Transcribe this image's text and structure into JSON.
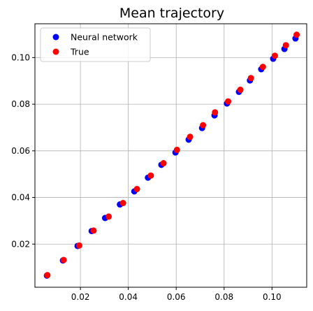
{
  "chart_data": {
    "type": "scatter",
    "title": "Mean trajectory",
    "xlabel": "",
    "ylabel": "",
    "xlim": [
      0.001,
      0.1145
    ],
    "ylim": [
      0.0015,
      0.1145
    ],
    "xticks": [
      0.02,
      0.04,
      0.06,
      0.08,
      0.1
    ],
    "xtick_labels": [
      "0.02",
      "0.04",
      "0.06",
      "0.08",
      "0.10"
    ],
    "yticks": [
      0.02,
      0.04,
      0.06,
      0.08,
      0.1
    ],
    "ytick_labels": [
      "0.02",
      "0.04",
      "0.06",
      "0.08",
      "0.10"
    ],
    "grid": true,
    "legend_position": "top-left",
    "series": [
      {
        "name": "Neural network",
        "color": "#0000ff",
        "points": [
          [
            0.006,
            0.0065
          ],
          [
            0.0127,
            0.013
          ],
          [
            0.0188,
            0.0192
          ],
          [
            0.0247,
            0.0256
          ],
          [
            0.0303,
            0.0312
          ],
          [
            0.0365,
            0.037
          ],
          [
            0.0425,
            0.0426
          ],
          [
            0.0482,
            0.0485
          ],
          [
            0.0538,
            0.054
          ],
          [
            0.0597,
            0.0593
          ],
          [
            0.0652,
            0.0648
          ],
          [
            0.0708,
            0.0698
          ],
          [
            0.076,
            0.0752
          ],
          [
            0.0812,
            0.0803
          ],
          [
            0.0862,
            0.0853
          ],
          [
            0.0908,
            0.0902
          ],
          [
            0.0955,
            0.095
          ],
          [
            0.1005,
            0.0995
          ],
          [
            0.1052,
            0.1037
          ],
          [
            0.1098,
            0.1082
          ]
        ]
      },
      {
        "name": "True",
        "color": "#ff0000",
        "points": [
          [
            0.0062,
            0.0067
          ],
          [
            0.013,
            0.0132
          ],
          [
            0.0195,
            0.0194
          ],
          [
            0.0255,
            0.0258
          ],
          [
            0.0318,
            0.0318
          ],
          [
            0.0378,
            0.0376
          ],
          [
            0.0436,
            0.0436
          ],
          [
            0.0494,
            0.0494
          ],
          [
            0.0547,
            0.0547
          ],
          [
            0.0603,
            0.0604
          ],
          [
            0.0658,
            0.066
          ],
          [
            0.0712,
            0.071
          ],
          [
            0.0762,
            0.0765
          ],
          [
            0.0817,
            0.0812
          ],
          [
            0.0868,
            0.0862
          ],
          [
            0.0912,
            0.0912
          ],
          [
            0.0962,
            0.096
          ],
          [
            0.1012,
            0.1008
          ],
          [
            0.1058,
            0.1053
          ],
          [
            0.1103,
            0.1098
          ]
        ]
      }
    ]
  },
  "colors": {
    "background": "#ffffff",
    "grid": "#b0b0b0",
    "axes": "#000000"
  }
}
